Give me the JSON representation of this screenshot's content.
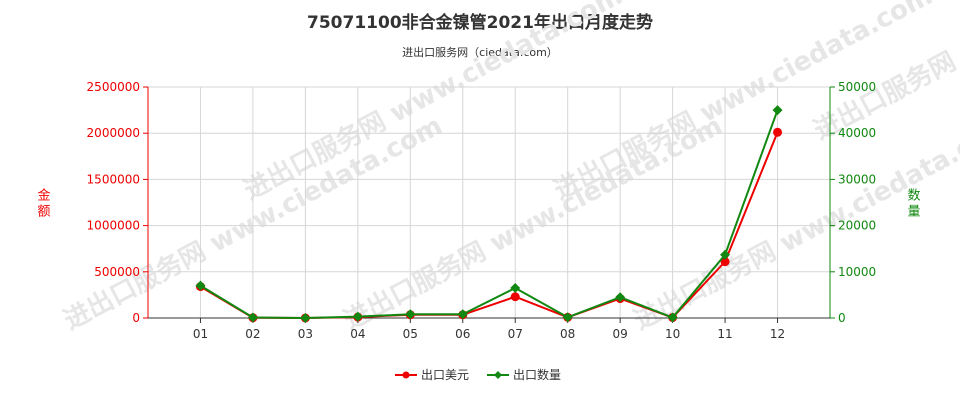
{
  "title": "75071100非合金镍管2021年出口月度走势",
  "subtitle": "进出口服务网（ciedata.com）",
  "watermark": "进出口服务网 www.ciedata.com",
  "chart_data": {
    "type": "line",
    "categories": [
      "01",
      "02",
      "03",
      "04",
      "05",
      "06",
      "07",
      "08",
      "09",
      "10",
      "11",
      "12"
    ],
    "series": [
      {
        "name": "出口美元",
        "axis": "left",
        "color": "#ee0000",
        "marker": "circle",
        "values": [
          340000,
          3000,
          0,
          10000,
          35000,
          35000,
          230000,
          8000,
          210000,
          5000,
          610000,
          2010000
        ]
      },
      {
        "name": "出口数量",
        "axis": "right",
        "color": "#118811",
        "marker": "diamond",
        "values": [
          7000,
          100,
          0,
          300,
          800,
          800,
          6500,
          150,
          4500,
          100,
          13700,
          45000
        ]
      }
    ],
    "yleft": {
      "label": "金额",
      "min": 0,
      "max": 2500000,
      "ticks": [
        "0",
        "500000",
        "1000000",
        "1500000",
        "2000000",
        "2500000"
      ],
      "color": "#ee0000"
    },
    "yright": {
      "label": "数量",
      "min": 0,
      "max": 50000,
      "ticks": [
        "0",
        "10000",
        "20000",
        "30000",
        "40000",
        "50000"
      ],
      "color": "#118811"
    },
    "grid": true,
    "legend": "bottom"
  }
}
